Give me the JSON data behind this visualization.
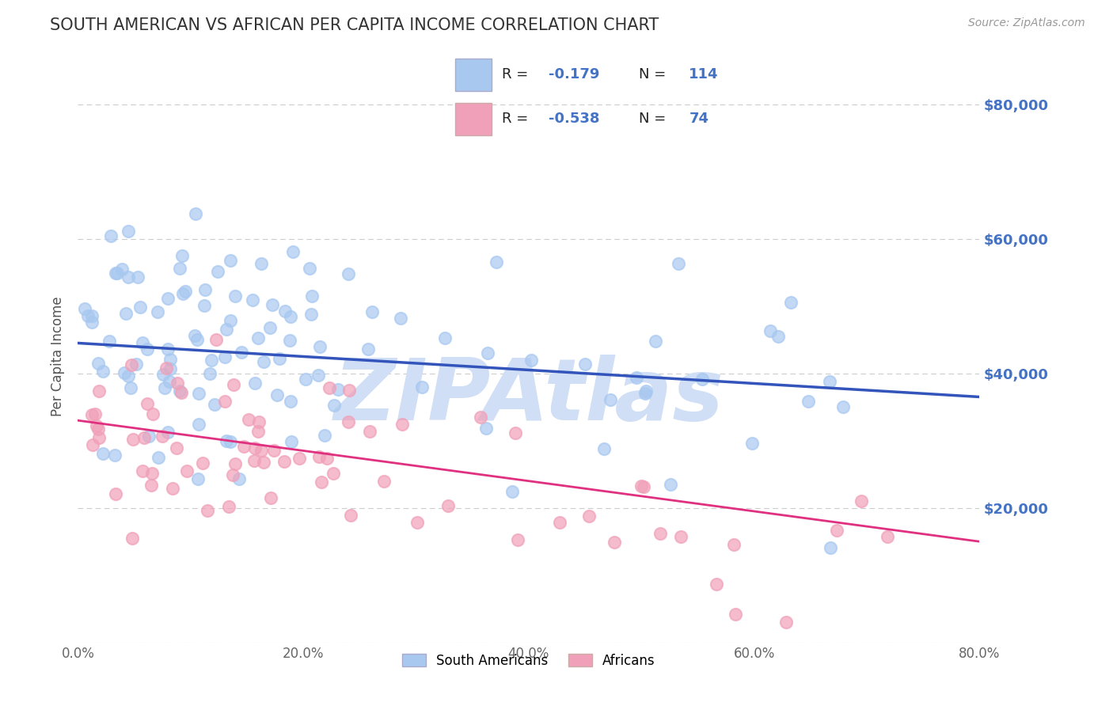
{
  "title": "SOUTH AMERICAN VS AFRICAN PER CAPITA INCOME CORRELATION CHART",
  "source": "Source: ZipAtlas.com",
  "ylabel": "Per Capita Income",
  "xlim": [
    0.0,
    0.8
  ],
  "ylim": [
    0,
    85000
  ],
  "yticks": [
    0,
    20000,
    40000,
    60000,
    80000
  ],
  "ytick_labels": [
    "",
    "$20,000",
    "$40,000",
    "$60,000",
    "$80,000"
  ],
  "xtick_labels": [
    "0.0%",
    "20.0%",
    "40.0%",
    "60.0%",
    "80.0%"
  ],
  "xticks": [
    0.0,
    0.2,
    0.4,
    0.6,
    0.8
  ],
  "blue_color": "#a8c8f0",
  "pink_color": "#f0a0b8",
  "blue_line_color": "#3355bb",
  "pink_line_color": "#e03080",
  "right_label_color": "#4472c4",
  "watermark": "ZIPAtlas",
  "watermark_color": "#d0dff5",
  "legend_label1": "South Americans",
  "legend_label2": "Africans",
  "blue_line_y0": 44500,
  "blue_line_y1": 36500,
  "pink_line_y0": 33000,
  "pink_line_y1": 15000,
  "background_color": "#ffffff",
  "grid_color": "#cccccc",
  "title_color": "#333333",
  "seed": 42
}
